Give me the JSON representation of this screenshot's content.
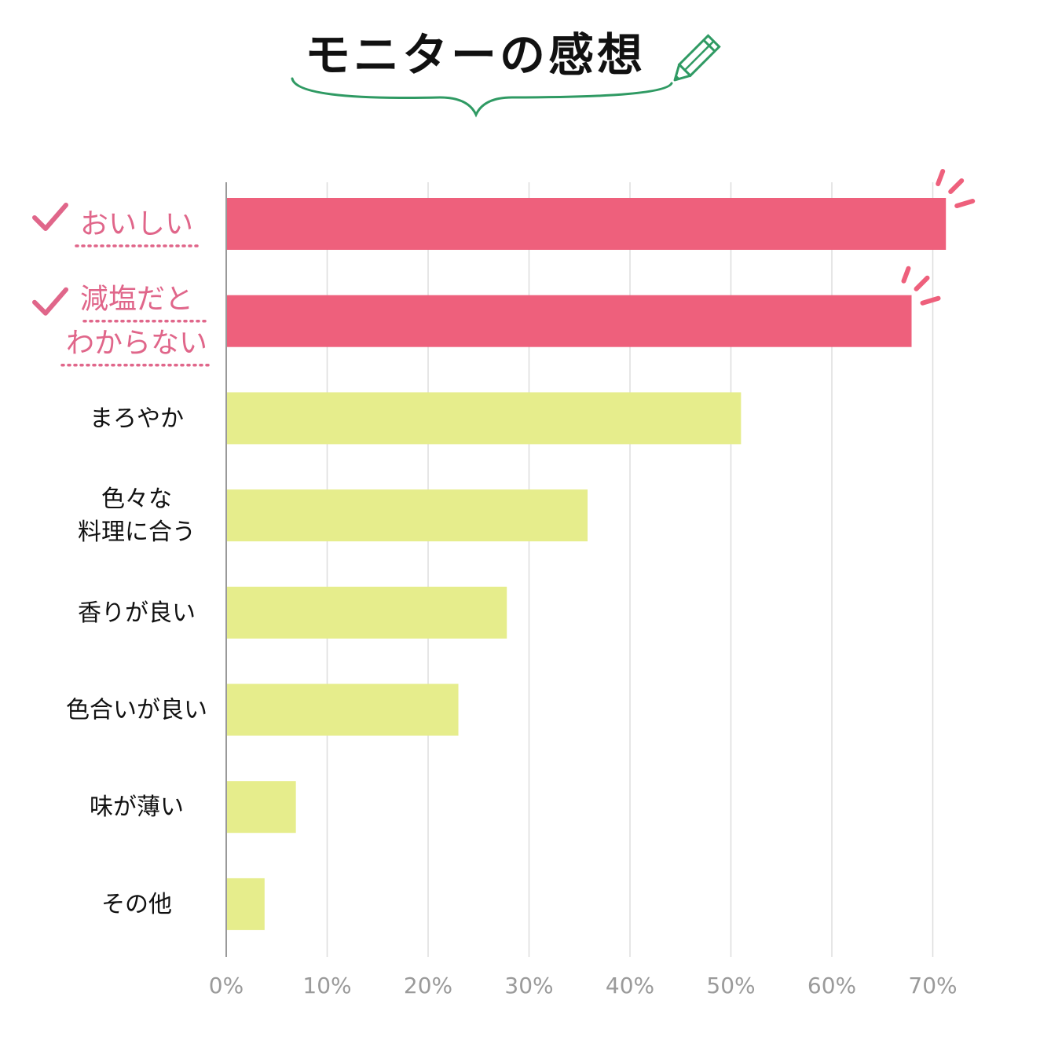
{
  "chart_data": {
    "type": "bar",
    "orientation": "horizontal",
    "title": "モニターの感想",
    "categories": [
      [
        "おいしい"
      ],
      [
        "減塩だと",
        "わからない"
      ],
      [
        "まろやか"
      ],
      [
        "色々な",
        "料理に合う"
      ],
      [
        "香りが良い"
      ],
      [
        "色合いが良い"
      ],
      [
        "味が薄い"
      ],
      [
        "その他"
      ]
    ],
    "values": [
      71.3,
      67.9,
      51,
      35.8,
      27.8,
      23,
      6.9,
      3.8
    ],
    "highlighted": [
      true,
      true,
      false,
      false,
      false,
      false,
      false,
      false
    ],
    "xlim": [
      0,
      70
    ],
    "x_ticks": [
      "0%",
      "10%",
      "20%",
      "30%",
      "40%",
      "50%",
      "60%",
      "70%"
    ],
    "x_tick_values": [
      0,
      10,
      20,
      30,
      40,
      50,
      60,
      70
    ],
    "grid": true,
    "colors": {
      "highlight_bar": "#ee607c",
      "normal_bar": "#e6ed8c",
      "highlight_text": "#e0668a",
      "title_underline": "#2f9a63",
      "pencil": "#2f9a63",
      "grid": "#dddddd",
      "axis": "#9a9a9a"
    },
    "decorations": {
      "checkmark_icon": "check-icon",
      "pencil_icon": "pencil-icon",
      "burst_icon": "burst-icon"
    }
  }
}
